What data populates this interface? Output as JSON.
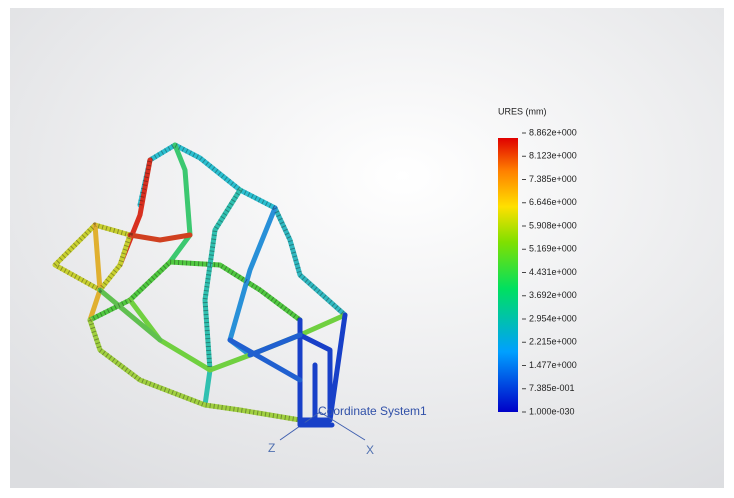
{
  "legend": {
    "title": "URES (mm)",
    "labels": [
      "8.862e+000",
      "8.123e+000",
      "7.385e+000",
      "6.646e+000",
      "5.908e+000",
      "5.169e+000",
      "4.431e+000",
      "3.692e+000",
      "2.954e+000",
      "2.215e+000",
      "1.477e+000",
      "7.385e-001",
      "1.000e-030"
    ]
  },
  "triad": {
    "name": "Coordinate System1",
    "axis_z": "Z",
    "axis_x": "X"
  }
}
